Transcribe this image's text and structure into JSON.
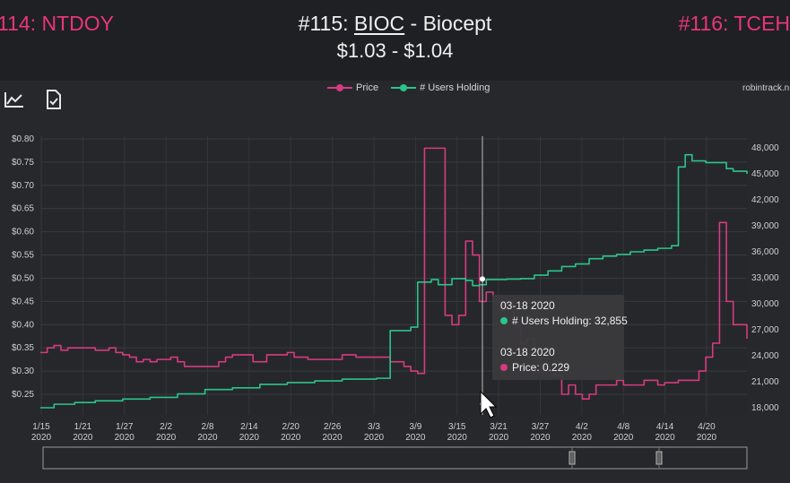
{
  "header": {
    "prev_link": "114: NTDOY",
    "title_prefix": "#115: ",
    "ticker": "BIOC",
    "title_suffix": " - Biocept",
    "price_range": "$1.03 - $1.04",
    "next_link": "#116: TCEH"
  },
  "toolbar": {
    "chart_icon": "line-chart-icon",
    "export_icon": "document-check-icon"
  },
  "legend": [
    {
      "label": "Price",
      "color": "#d63b7f"
    },
    {
      "label": "# Users Holding",
      "color": "#2bc48a"
    }
  ],
  "site_label": "robintrack.n",
  "tooltip": {
    "date1": "03-18 2020",
    "users_line": "# Users Holding: 32,855",
    "date2": "03-18 2020",
    "price_line": "Price: 0.229"
  },
  "chart_data": {
    "type": "line",
    "x_ticks": [
      "1/15\n2020",
      "1/21\n2020",
      "1/27\n2020",
      "2/2\n2020",
      "2/8\n2020",
      "2/14\n2020",
      "2/20\n2020",
      "2/26\n2020",
      "3/3\n2020",
      "3/9\n2020",
      "3/15\n2020",
      "3/21\n2020",
      "3/27\n2020",
      "4/2\n2020",
      "4/8\n2020",
      "4/14\n2020",
      "4/20\n2020"
    ],
    "y_left_ticks": [
      "$0.80",
      "$0.75",
      "$0.70",
      "$0.65",
      "$0.60",
      "$0.55",
      "$0.50",
      "$0.45",
      "$0.40",
      "$0.35",
      "$0.30",
      "$0.25"
    ],
    "y_right_ticks": [
      "48,000",
      "45,000",
      "42,000",
      "39,000",
      "36,000",
      "33,000",
      "30,000",
      "27,000",
      "24,000",
      "21,000",
      "18,000"
    ],
    "ylim_left": [
      0.22,
      0.8
    ],
    "ylim_right": [
      17500,
      48500
    ],
    "x_range": [
      0,
      103
    ],
    "series": [
      {
        "name": "Price",
        "color": "#d63b7f",
        "axis": "left",
        "points": [
          [
            0,
            0.34
          ],
          [
            1,
            0.35
          ],
          [
            2,
            0.355
          ],
          [
            3,
            0.345
          ],
          [
            4,
            0.35
          ],
          [
            8,
            0.345
          ],
          [
            10,
            0.35
          ],
          [
            11,
            0.34
          ],
          [
            12,
            0.335
          ],
          [
            13,
            0.33
          ],
          [
            14,
            0.32
          ],
          [
            15,
            0.325
          ],
          [
            16,
            0.32
          ],
          [
            17,
            0.325
          ],
          [
            19,
            0.33
          ],
          [
            20,
            0.32
          ],
          [
            21,
            0.31
          ],
          [
            25,
            0.31
          ],
          [
            26,
            0.32
          ],
          [
            27,
            0.33
          ],
          [
            28,
            0.335
          ],
          [
            30,
            0.335
          ],
          [
            31,
            0.32
          ],
          [
            33,
            0.335
          ],
          [
            36,
            0.34
          ],
          [
            37,
            0.33
          ],
          [
            39,
            0.325
          ],
          [
            42,
            0.325
          ],
          [
            44,
            0.335
          ],
          [
            46,
            0.33
          ],
          [
            49,
            0.33
          ],
          [
            51,
            0.32
          ],
          [
            53,
            0.31
          ],
          [
            54,
            0.3
          ],
          [
            55,
            0.295
          ],
          [
            56,
            0.78
          ],
          [
            58,
            0.78
          ],
          [
            59,
            0.42
          ],
          [
            60,
            0.4
          ],
          [
            61,
            0.42
          ],
          [
            62,
            0.58
          ],
          [
            63,
            0.55
          ],
          [
            64,
            0.45
          ],
          [
            65,
            0.47
          ],
          [
            66,
            0.45
          ],
          [
            67,
            0.43
          ],
          [
            68,
            0.45
          ],
          [
            69,
            0.4
          ],
          [
            70,
            0.36
          ],
          [
            71,
            0.37
          ],
          [
            72,
            0.33
          ],
          [
            73,
            0.3
          ],
          [
            74,
            0.31
          ],
          [
            75,
            0.29
          ],
          [
            76,
            0.25
          ],
          [
            77,
            0.27
          ],
          [
            78,
            0.25
          ],
          [
            79,
            0.24
          ],
          [
            80,
            0.25
          ],
          [
            81,
            0.27
          ],
          [
            83,
            0.27
          ],
          [
            84,
            0.28
          ],
          [
            85,
            0.27
          ],
          [
            88,
            0.28
          ],
          [
            90,
            0.27
          ],
          [
            91,
            0.275
          ],
          [
            93,
            0.28
          ],
          [
            95,
            0.28
          ],
          [
            96,
            0.3
          ],
          [
            97,
            0.33
          ],
          [
            98,
            0.36
          ],
          [
            99,
            0.62
          ],
          [
            100,
            0.45
          ],
          [
            101,
            0.4
          ],
          [
            102,
            0.4
          ],
          [
            103,
            0.37
          ]
        ]
      },
      {
        "name": "# Users Holding",
        "color": "#2bc48a",
        "axis": "right",
        "points": [
          [
            0,
            18000
          ],
          [
            2,
            18400
          ],
          [
            5,
            18600
          ],
          [
            8,
            18800
          ],
          [
            12,
            19000
          ],
          [
            16,
            19200
          ],
          [
            20,
            19600
          ],
          [
            24,
            20100
          ],
          [
            28,
            20300
          ],
          [
            32,
            20700
          ],
          [
            36,
            20900
          ],
          [
            40,
            21100
          ],
          [
            44,
            21300
          ],
          [
            46,
            21300
          ],
          [
            49,
            21400
          ],
          [
            50,
            21400
          ],
          [
            51,
            26900
          ],
          [
            54,
            27300
          ],
          [
            55,
            32500
          ],
          [
            57,
            32800
          ],
          [
            58,
            32200
          ],
          [
            60,
            32900
          ],
          [
            62,
            32700
          ],
          [
            63,
            32100
          ],
          [
            64,
            32200
          ],
          [
            65,
            32800
          ],
          [
            66,
            32800
          ],
          [
            68,
            32850
          ],
          [
            70,
            32900
          ],
          [
            72,
            33300
          ],
          [
            74,
            33800
          ],
          [
            76,
            34300
          ],
          [
            78,
            34600
          ],
          [
            80,
            35200
          ],
          [
            82,
            35500
          ],
          [
            84,
            35700
          ],
          [
            86,
            36000
          ],
          [
            88,
            36200
          ],
          [
            90,
            36400
          ],
          [
            92,
            36700
          ],
          [
            93,
            45800
          ],
          [
            94,
            47200
          ],
          [
            95,
            46500
          ],
          [
            97,
            46300
          ],
          [
            99,
            46300
          ],
          [
            100,
            45600
          ],
          [
            101,
            45300
          ],
          [
            103,
            45000
          ]
        ]
      }
    ],
    "highlight_date": "03-18 2020"
  },
  "navigator": {
    "label": "range-navigator"
  }
}
